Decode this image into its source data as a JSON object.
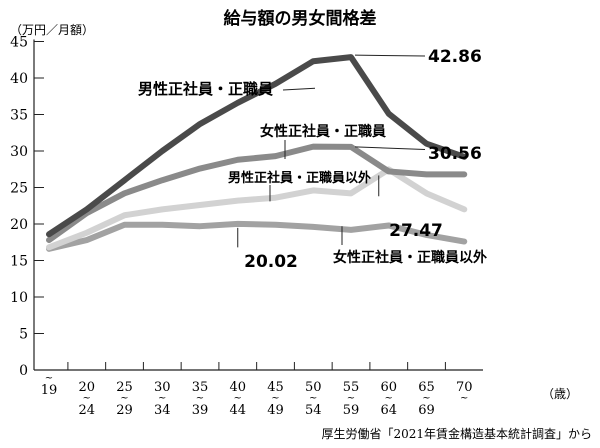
{
  "chart_data": {
    "type": "line",
    "title": "給与額の男女間格差",
    "ylabel": "（万円／月額）",
    "xlabel": "（歳）",
    "ylim": [
      0,
      45
    ],
    "yticks": [
      "0",
      "5",
      "10",
      "15",
      "20",
      "25",
      "30",
      "35",
      "40",
      "45"
    ],
    "categories": [
      {
        "top": "",
        "bottom": "19",
        "tilde": "top"
      },
      {
        "top": "20",
        "bottom": "24"
      },
      {
        "top": "25",
        "bottom": "29"
      },
      {
        "top": "30",
        "bottom": "34"
      },
      {
        "top": "35",
        "bottom": "39"
      },
      {
        "top": "40",
        "bottom": "44"
      },
      {
        "top": "45",
        "bottom": "49"
      },
      {
        "top": "50",
        "bottom": "54"
      },
      {
        "top": "55",
        "bottom": "59"
      },
      {
        "top": "60",
        "bottom": "64"
      },
      {
        "top": "65",
        "bottom": "69"
      },
      {
        "top": "70",
        "bottom": ""
      }
    ],
    "grid": false,
    "series": [
      {
        "name": "男性正社員・正職員",
        "color": "#4a4a4a",
        "values": [
          18.6,
          22.0,
          26.0,
          30.0,
          33.7,
          36.6,
          39.2,
          42.3,
          42.86,
          35.1,
          31.0,
          29.2
        ],
        "annotation": {
          "text": "42.86",
          "index": 8
        }
      },
      {
        "name": "女性正社員・正職員",
        "color": "#8a8a8a",
        "values": [
          17.8,
          21.5,
          24.2,
          26.0,
          27.6,
          28.8,
          29.3,
          30.6,
          30.56,
          27.2,
          26.8,
          26.8
        ],
        "annotation": {
          "text": "30.56",
          "index": 8
        }
      },
      {
        "name": "男性正社員・正職員以外",
        "color": "#d2d2d2",
        "values": [
          16.8,
          18.8,
          21.2,
          22.0,
          22.6,
          23.2,
          23.6,
          24.6,
          24.2,
          27.47,
          24.2,
          22.0
        ],
        "annotation": {
          "text": "27.47",
          "index": 9
        }
      },
      {
        "name": "女性正社員・正職員以外",
        "color": "#a2a2a2",
        "values": [
          16.6,
          17.8,
          19.9,
          19.9,
          19.7,
          20.02,
          19.9,
          19.6,
          19.2,
          19.8,
          18.5,
          17.6
        ],
        "annotation": {
          "text": "20.02",
          "index": 5
        }
      }
    ],
    "source": "厚生労働省「2021年賃金構造基本統計調査」から"
  }
}
